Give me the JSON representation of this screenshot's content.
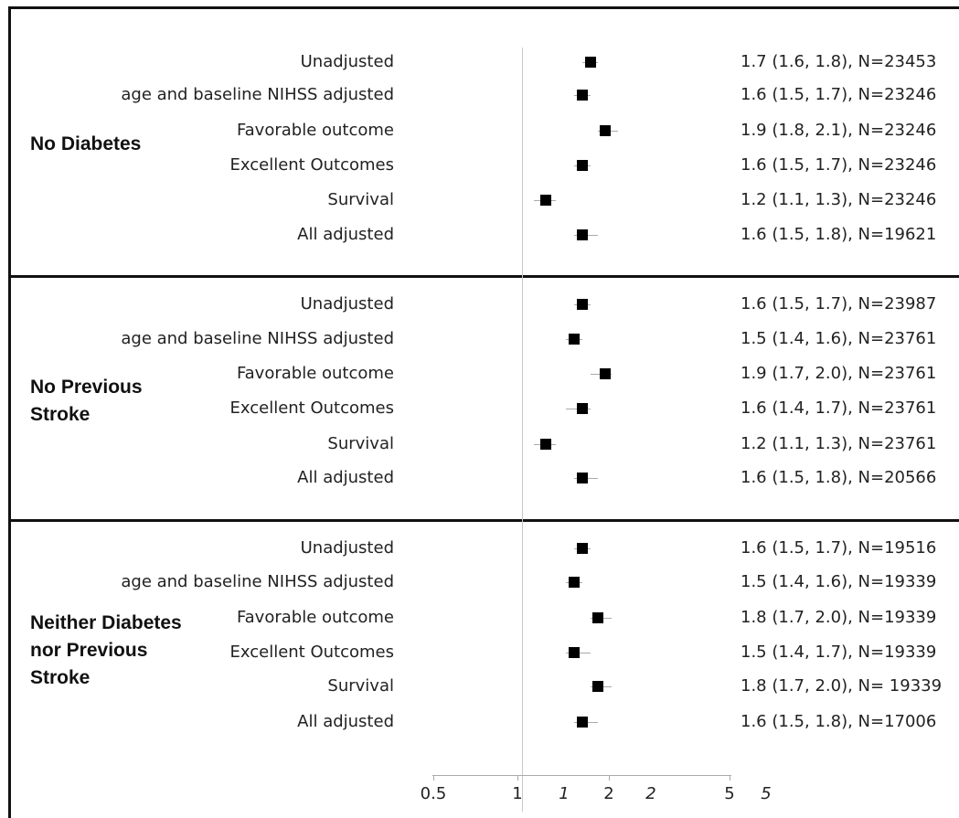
{
  "chart_data": {
    "type": "forest",
    "x_scale": "log",
    "xlim": [
      0.5,
      5
    ],
    "reference_line": 1,
    "x_ticks": [
      "0.5",
      "1",
      "1",
      "2",
      "2",
      "5",
      "5"
    ],
    "groups": [
      {
        "label": "No Diabetes",
        "rows": [
          {
            "label": "Unadjusted",
            "estimate": 1.7,
            "lower": 1.6,
            "upper": 1.8,
            "text": "1.7 (1.6, 1.8), N=23453"
          },
          {
            "label": "age and baseline NIHSS adjusted",
            "estimate": 1.6,
            "lower": 1.5,
            "upper": 1.7,
            "text": "1.6 (1.5, 1.7), N=23246"
          },
          {
            "label": "Favorable outcome",
            "estimate": 1.9,
            "lower": 1.8,
            "upper": 2.1,
            "text": "1.9 (1.8, 2.1), N=23246"
          },
          {
            "label": "Excellent Outcomes",
            "estimate": 1.6,
            "lower": 1.5,
            "upper": 1.7,
            "text": "1.6 (1.5, 1.7), N=23246"
          },
          {
            "label": "Survival",
            "estimate": 1.2,
            "lower": 1.1,
            "upper": 1.3,
            "text": "1.2 (1.1, 1.3), N=23246"
          },
          {
            "label": "All adjusted",
            "estimate": 1.6,
            "lower": 1.5,
            "upper": 1.8,
            "text": "1.6 (1.5, 1.8), N=19621"
          }
        ]
      },
      {
        "label": "No Previous\nStroke",
        "rows": [
          {
            "label": "Unadjusted",
            "estimate": 1.6,
            "lower": 1.5,
            "upper": 1.7,
            "text": "1.6 (1.5, 1.7), N=23987"
          },
          {
            "label": "age and baseline NIHSS adjusted",
            "estimate": 1.5,
            "lower": 1.4,
            "upper": 1.6,
            "text": "1.5 (1.4, 1.6), N=23761"
          },
          {
            "label": "Favorable outcome",
            "estimate": 1.9,
            "lower": 1.7,
            "upper": 2.0,
            "text": "1.9 (1.7, 2.0), N=23761"
          },
          {
            "label": "Excellent Outcomes",
            "estimate": 1.6,
            "lower": 1.4,
            "upper": 1.7,
            "text": "1.6 (1.4, 1.7), N=23761"
          },
          {
            "label": "Survival",
            "estimate": 1.2,
            "lower": 1.1,
            "upper": 1.3,
            "text": "1.2 (1.1, 1.3), N=23761"
          },
          {
            "label": "All adjusted",
            "estimate": 1.6,
            "lower": 1.5,
            "upper": 1.8,
            "text": "1.6 (1.5, 1.8), N=20566"
          }
        ]
      },
      {
        "label": "Neither Diabetes\nnor Previous\nStroke",
        "rows": [
          {
            "label": "Unadjusted",
            "estimate": 1.6,
            "lower": 1.5,
            "upper": 1.7,
            "text": "1.6 (1.5, 1.7), N=19516"
          },
          {
            "label": "age and baseline NIHSS adjusted",
            "estimate": 1.5,
            "lower": 1.4,
            "upper": 1.6,
            "text": "1.5 (1.4, 1.6), N=19339"
          },
          {
            "label": "Favorable outcome",
            "estimate": 1.8,
            "lower": 1.7,
            "upper": 2.0,
            "text": "1.8 (1.7, 2.0), N=19339"
          },
          {
            "label": "Excellent Outcomes",
            "estimate": 1.5,
            "lower": 1.4,
            "upper": 1.7,
            "text": "1.5 (1.4, 1.7), N=19339"
          },
          {
            "label": "Survival",
            "estimate": 1.8,
            "lower": 1.7,
            "upper": 2.0,
            "text": "1.8 (1.7, 2.0), N= 19339"
          },
          {
            "label": "All adjusted",
            "estimate": 1.6,
            "lower": 1.5,
            "upper": 1.8,
            "text": "1.6 (1.5, 1.8), N=17006"
          }
        ]
      }
    ]
  }
}
